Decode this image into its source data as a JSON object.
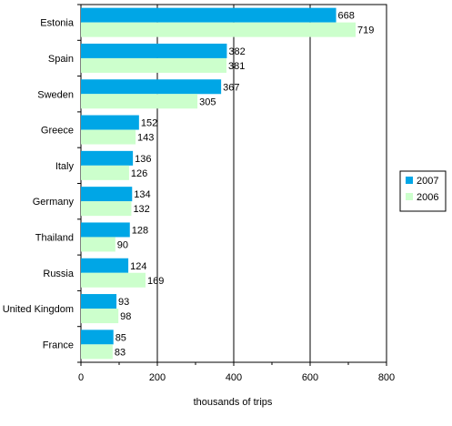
{
  "chart_data": {
    "type": "bar",
    "orientation": "horizontal",
    "categories": [
      "Estonia",
      "Spain",
      "Sweden",
      "Greece",
      "Italy",
      "Germany",
      "Thailand",
      "Russia",
      "United Kingdom",
      "France"
    ],
    "series": [
      {
        "name": "2007",
        "values": [
          668,
          382,
          367,
          152,
          136,
          134,
          128,
          124,
          93,
          85
        ],
        "color": "#00a6e6"
      },
      {
        "name": "2006",
        "values": [
          719,
          381,
          305,
          143,
          126,
          132,
          90,
          169,
          98,
          83
        ],
        "color": "#ccffcc"
      }
    ],
    "xlabel": "thousands of trips",
    "xlim": [
      0,
      800
    ],
    "xticks": [
      0,
      200,
      400,
      600,
      800
    ],
    "grid": true,
    "legend_position": "right"
  }
}
